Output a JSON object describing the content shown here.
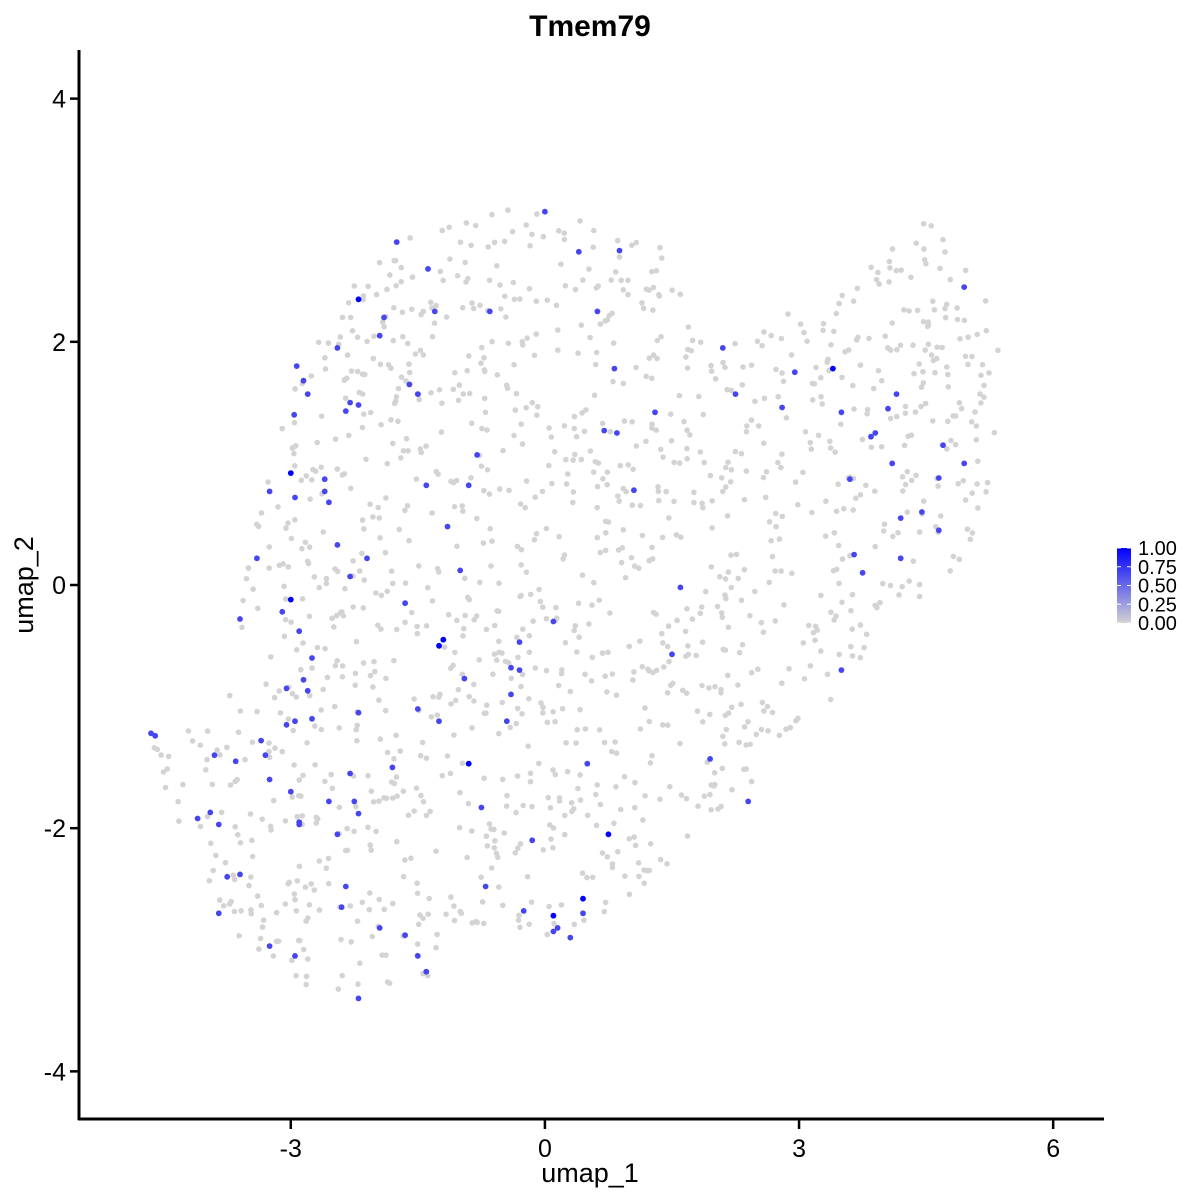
{
  "chart_data": {
    "type": "scatter",
    "title": "Tmem79",
    "xlabel": "umap_1",
    "ylabel": "umap_2",
    "xlim": [
      -5.5,
      6.6
    ],
    "ylim": [
      -4.4,
      4.4
    ],
    "xticks": [
      -3,
      0,
      3,
      6
    ],
    "xtick_labels": [
      "-3",
      "0",
      "3",
      "6"
    ],
    "yticks": [
      -4,
      -2,
      0,
      2,
      4
    ],
    "ytick_labels": [
      "-4",
      "-2",
      "0",
      "2",
      "4"
    ],
    "grid": false,
    "legend_placement": "right",
    "colorbar": {
      "ticks": [
        0.0,
        0.25,
        0.5,
        0.75,
        1.0
      ],
      "labels": [
        "0.00",
        "0.25",
        "0.50",
        "0.75",
        "1.00"
      ],
      "low_color": "#d3d3d3",
      "high_color": "#0000ff"
    },
    "expressed_points": [
      {
        "x": 0.0,
        "y": 3.07,
        "v": 0.55
      },
      {
        "x": -2.2,
        "y": 2.35,
        "v": 1.0
      },
      {
        "x": -1.38,
        "y": 2.6,
        "v": 0.55
      },
      {
        "x": -1.75,
        "y": 2.82,
        "v": 0.55
      },
      {
        "x": 0.4,
        "y": 2.74,
        "v": 0.55
      },
      {
        "x": 0.88,
        "y": 2.75,
        "v": 0.55
      },
      {
        "x": 0.62,
        "y": 2.25,
        "v": 0.55
      },
      {
        "x": -0.65,
        "y": 2.25,
        "v": 0.55
      },
      {
        "x": -1.3,
        "y": 2.25,
        "v": 0.55
      },
      {
        "x": -1.9,
        "y": 2.2,
        "v": 0.55
      },
      {
        "x": -1.95,
        "y": 2.05,
        "v": 0.55
      },
      {
        "x": -2.45,
        "y": 1.95,
        "v": 0.55
      },
      {
        "x": -2.93,
        "y": 1.8,
        "v": 0.55
      },
      {
        "x": -2.85,
        "y": 1.68,
        "v": 0.55
      },
      {
        "x": -2.8,
        "y": 1.57,
        "v": 0.55
      },
      {
        "x": -1.6,
        "y": 1.65,
        "v": 0.55
      },
      {
        "x": -1.5,
        "y": 1.57,
        "v": 0.55
      },
      {
        "x": -2.3,
        "y": 1.5,
        "v": 0.55
      },
      {
        "x": -2.35,
        "y": 1.43,
        "v": 0.55
      },
      {
        "x": -2.2,
        "y": 1.48,
        "v": 0.55
      },
      {
        "x": -2.96,
        "y": 1.4,
        "v": 0.55
      },
      {
        "x": -0.8,
        "y": 1.07,
        "v": 0.55
      },
      {
        "x": 0.7,
        "y": 1.27,
        "v": 0.55
      },
      {
        "x": 0.85,
        "y": 1.25,
        "v": 0.55
      },
      {
        "x": 0.82,
        "y": 1.78,
        "v": 0.55
      },
      {
        "x": 1.3,
        "y": 1.42,
        "v": 0.55
      },
      {
        "x": 2.1,
        "y": 1.95,
        "v": 0.55
      },
      {
        "x": 2.25,
        "y": 1.57,
        "v": 0.55
      },
      {
        "x": 2.95,
        "y": 1.75,
        "v": 0.55
      },
      {
        "x": 2.8,
        "y": 1.46,
        "v": 0.55
      },
      {
        "x": 3.4,
        "y": 1.78,
        "v": 1.0
      },
      {
        "x": 3.5,
        "y": 1.42,
        "v": 0.55
      },
      {
        "x": 3.85,
        "y": 1.22,
        "v": 0.55
      },
      {
        "x": 3.9,
        "y": 1.25,
        "v": 0.55
      },
      {
        "x": 4.05,
        "y": 1.45,
        "v": 0.55
      },
      {
        "x": 4.15,
        "y": 1.57,
        "v": 0.55
      },
      {
        "x": 4.7,
        "y": 1.15,
        "v": 0.55
      },
      {
        "x": 4.95,
        "y": 1.0,
        "v": 0.55
      },
      {
        "x": 4.1,
        "y": 1.0,
        "v": 0.55
      },
      {
        "x": 4.95,
        "y": 2.45,
        "v": 0.55
      },
      {
        "x": 3.6,
        "y": 0.87,
        "v": 0.55
      },
      {
        "x": 4.65,
        "y": 0.88,
        "v": 0.55
      },
      {
        "x": 4.2,
        "y": 0.55,
        "v": 0.55
      },
      {
        "x": 4.45,
        "y": 0.6,
        "v": 0.55
      },
      {
        "x": 4.65,
        "y": 0.45,
        "v": 0.55
      },
      {
        "x": 3.65,
        "y": 0.25,
        "v": 0.55
      },
      {
        "x": 4.2,
        "y": 0.22,
        "v": 0.55
      },
      {
        "x": 3.75,
        "y": 0.1,
        "v": 0.55
      },
      {
        "x": -3.0,
        "y": 0.92,
        "v": 1.0
      },
      {
        "x": -3.25,
        "y": 0.77,
        "v": 0.55
      },
      {
        "x": -2.6,
        "y": 0.87,
        "v": 0.55
      },
      {
        "x": -2.6,
        "y": 0.77,
        "v": 0.55
      },
      {
        "x": -2.55,
        "y": 0.68,
        "v": 0.55
      },
      {
        "x": -2.95,
        "y": 0.72,
        "v": 0.55
      },
      {
        "x": -1.4,
        "y": 0.82,
        "v": 0.55
      },
      {
        "x": -0.9,
        "y": 0.82,
        "v": 0.55
      },
      {
        "x": 1.05,
        "y": 0.78,
        "v": 0.55
      },
      {
        "x": -1.15,
        "y": 0.48,
        "v": 0.55
      },
      {
        "x": -2.45,
        "y": 0.33,
        "v": 0.55
      },
      {
        "x": -2.1,
        "y": 0.22,
        "v": 0.55
      },
      {
        "x": -3.4,
        "y": 0.22,
        "v": 0.55
      },
      {
        "x": -1.0,
        "y": 0.12,
        "v": 0.55
      },
      {
        "x": -2.3,
        "y": 0.07,
        "v": 0.55
      },
      {
        "x": -3.0,
        "y": -0.12,
        "v": 1.0
      },
      {
        "x": -3.1,
        "y": -0.22,
        "v": 0.55
      },
      {
        "x": -3.6,
        "y": -0.28,
        "v": 0.55
      },
      {
        "x": -2.9,
        "y": -0.38,
        "v": 0.55
      },
      {
        "x": -1.65,
        "y": -0.15,
        "v": 0.55
      },
      {
        "x": 0.1,
        "y": -0.3,
        "v": 0.55
      },
      {
        "x": 1.6,
        "y": -0.02,
        "v": 0.55
      },
      {
        "x": -1.2,
        "y": -0.45,
        "v": 1.0
      },
      {
        "x": -1.25,
        "y": -0.5,
        "v": 1.0
      },
      {
        "x": -0.3,
        "y": -0.47,
        "v": 0.55
      },
      {
        "x": -2.75,
        "y": -0.6,
        "v": 0.55
      },
      {
        "x": -2.85,
        "y": -0.78,
        "v": 0.55
      },
      {
        "x": -2.8,
        "y": -0.87,
        "v": 0.55
      },
      {
        "x": -3.05,
        "y": -0.85,
        "v": 0.55
      },
      {
        "x": -0.4,
        "y": -0.68,
        "v": 0.55
      },
      {
        "x": -0.3,
        "y": -0.7,
        "v": 0.55
      },
      {
        "x": -0.95,
        "y": -0.77,
        "v": 0.55
      },
      {
        "x": -0.4,
        "y": -0.9,
        "v": 0.55
      },
      {
        "x": 1.5,
        "y": -0.57,
        "v": 0.55
      },
      {
        "x": 3.5,
        "y": -0.7,
        "v": 0.55
      },
      {
        "x": -1.5,
        "y": -1.02,
        "v": 0.55
      },
      {
        "x": -2.2,
        "y": -1.05,
        "v": 0.55
      },
      {
        "x": -2.75,
        "y": -1.1,
        "v": 0.55
      },
      {
        "x": -3.05,
        "y": -1.15,
        "v": 0.55
      },
      {
        "x": -2.95,
        "y": -1.12,
        "v": 0.55
      },
      {
        "x": -1.25,
        "y": -1.12,
        "v": 0.55
      },
      {
        "x": -0.45,
        "y": -1.12,
        "v": 0.55
      },
      {
        "x": -4.65,
        "y": -1.22,
        "v": 0.55
      },
      {
        "x": -4.6,
        "y": -1.24,
        "v": 0.55
      },
      {
        "x": -3.35,
        "y": -1.28,
        "v": 0.55
      },
      {
        "x": -3.9,
        "y": -1.4,
        "v": 0.55
      },
      {
        "x": -3.3,
        "y": -1.4,
        "v": 0.55
      },
      {
        "x": -3.65,
        "y": -1.45,
        "v": 0.55
      },
      {
        "x": -0.9,
        "y": -1.47,
        "v": 1.0
      },
      {
        "x": 0.5,
        "y": -1.47,
        "v": 0.55
      },
      {
        "x": 1.95,
        "y": -1.43,
        "v": 0.55
      },
      {
        "x": -1.8,
        "y": -1.5,
        "v": 0.55
      },
      {
        "x": -2.3,
        "y": -1.55,
        "v": 0.55
      },
      {
        "x": -3.25,
        "y": -1.6,
        "v": 0.55
      },
      {
        "x": -3.0,
        "y": -1.7,
        "v": 0.55
      },
      {
        "x": -2.55,
        "y": -1.78,
        "v": 0.55
      },
      {
        "x": -2.25,
        "y": -1.78,
        "v": 0.55
      },
      {
        "x": 2.4,
        "y": -1.78,
        "v": 0.55
      },
      {
        "x": -0.75,
        "y": -1.83,
        "v": 0.55
      },
      {
        "x": -3.95,
        "y": -1.87,
        "v": 0.55
      },
      {
        "x": -4.1,
        "y": -1.92,
        "v": 0.55
      },
      {
        "x": -2.2,
        "y": -1.88,
        "v": 0.55
      },
      {
        "x": -2.9,
        "y": -1.95,
        "v": 0.55
      },
      {
        "x": -2.9,
        "y": -1.97,
        "v": 0.55
      },
      {
        "x": -3.85,
        "y": -1.97,
        "v": 0.55
      },
      {
        "x": -2.45,
        "y": -2.05,
        "v": 0.55
      },
      {
        "x": 0.75,
        "y": -2.05,
        "v": 1.0
      },
      {
        "x": -0.15,
        "y": -2.1,
        "v": 0.55
      },
      {
        "x": -3.75,
        "y": -2.4,
        "v": 0.55
      },
      {
        "x": -3.6,
        "y": -2.38,
        "v": 0.55
      },
      {
        "x": -2.35,
        "y": -2.48,
        "v": 0.55
      },
      {
        "x": -0.7,
        "y": -2.48,
        "v": 0.55
      },
      {
        "x": 0.45,
        "y": -2.58,
        "v": 1.0
      },
      {
        "x": 0.1,
        "y": -2.72,
        "v": 1.0
      },
      {
        "x": 0.45,
        "y": -2.7,
        "v": 0.55
      },
      {
        "x": -0.25,
        "y": -2.68,
        "v": 0.55
      },
      {
        "x": -2.4,
        "y": -2.65,
        "v": 0.55
      },
      {
        "x": -3.85,
        "y": -2.7,
        "v": 0.55
      },
      {
        "x": 0.15,
        "y": -2.82,
        "v": 0.55
      },
      {
        "x": 0.1,
        "y": -2.85,
        "v": 0.55
      },
      {
        "x": 0.3,
        "y": -2.9,
        "v": 0.55
      },
      {
        "x": -1.95,
        "y": -2.82,
        "v": 0.55
      },
      {
        "x": -1.65,
        "y": -2.88,
        "v": 0.55
      },
      {
        "x": -3.25,
        "y": -2.97,
        "v": 0.55
      },
      {
        "x": -2.95,
        "y": -3.05,
        "v": 0.55
      },
      {
        "x": -1.5,
        "y": -3.05,
        "v": 0.55
      },
      {
        "x": -1.4,
        "y": -3.18,
        "v": 0.55
      },
      {
        "x": -2.2,
        "y": -3.4,
        "v": 0.55
      }
    ]
  }
}
